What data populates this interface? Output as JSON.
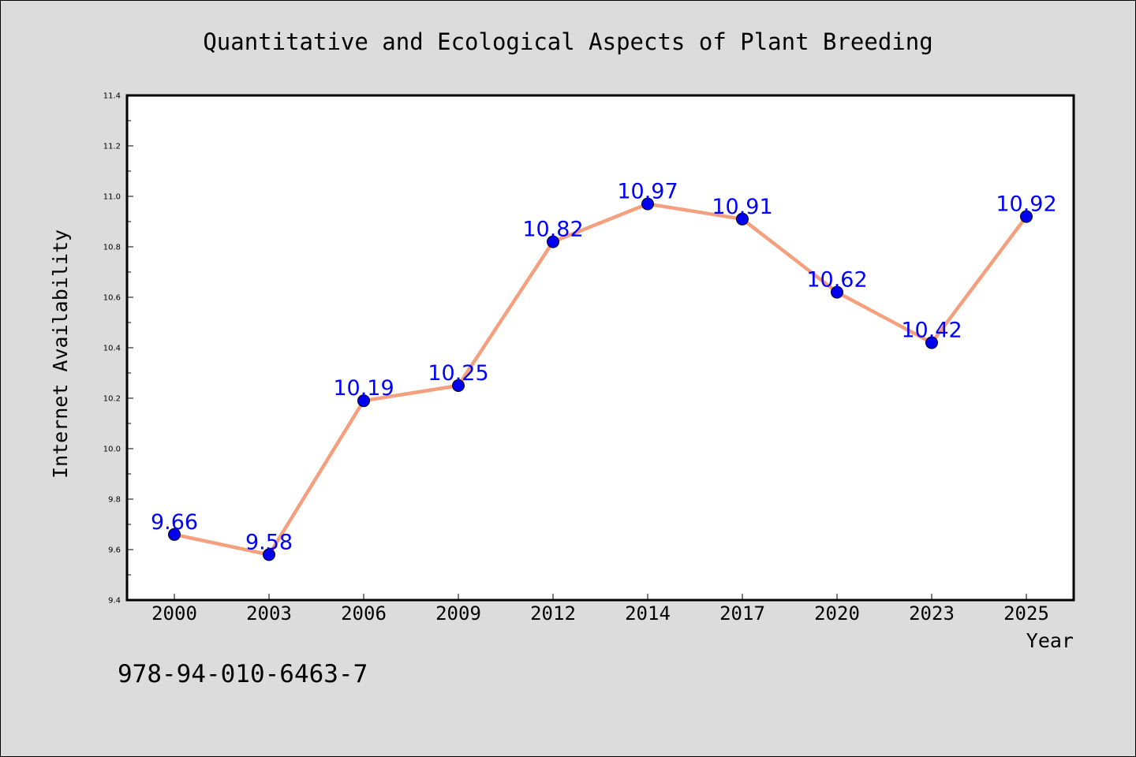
{
  "chart_data": {
    "type": "line",
    "title": "Quantitative and Ecological Aspects of Plant Breeding",
    "xlabel": "Year",
    "ylabel": "Internet Availability",
    "categories": [
      "2000",
      "2003",
      "2006",
      "2009",
      "2012",
      "2014",
      "2017",
      "2020",
      "2023",
      "2025"
    ],
    "values": [
      9.66,
      9.58,
      10.19,
      10.25,
      10.82,
      10.97,
      10.91,
      10.62,
      10.42,
      10.92
    ],
    "data_labels": [
      "9.66",
      "9.58",
      "10.19",
      "10.25",
      "10.82",
      "10.97",
      "10.91",
      "10.62",
      "10.42",
      "10.92"
    ],
    "ylim": [
      9.4,
      11.4
    ],
    "yticks": [
      "9.4",
      "9.6",
      "9.8",
      "10.0",
      "10.2",
      "10.4",
      "10.6",
      "10.8",
      "11.0",
      "11.2",
      "11.4"
    ],
    "grid": false,
    "line_color": "#f4a07e",
    "marker_color": "#0000ee",
    "label_color": "#0000ff"
  },
  "annotation": "978-94-010-6463-7"
}
